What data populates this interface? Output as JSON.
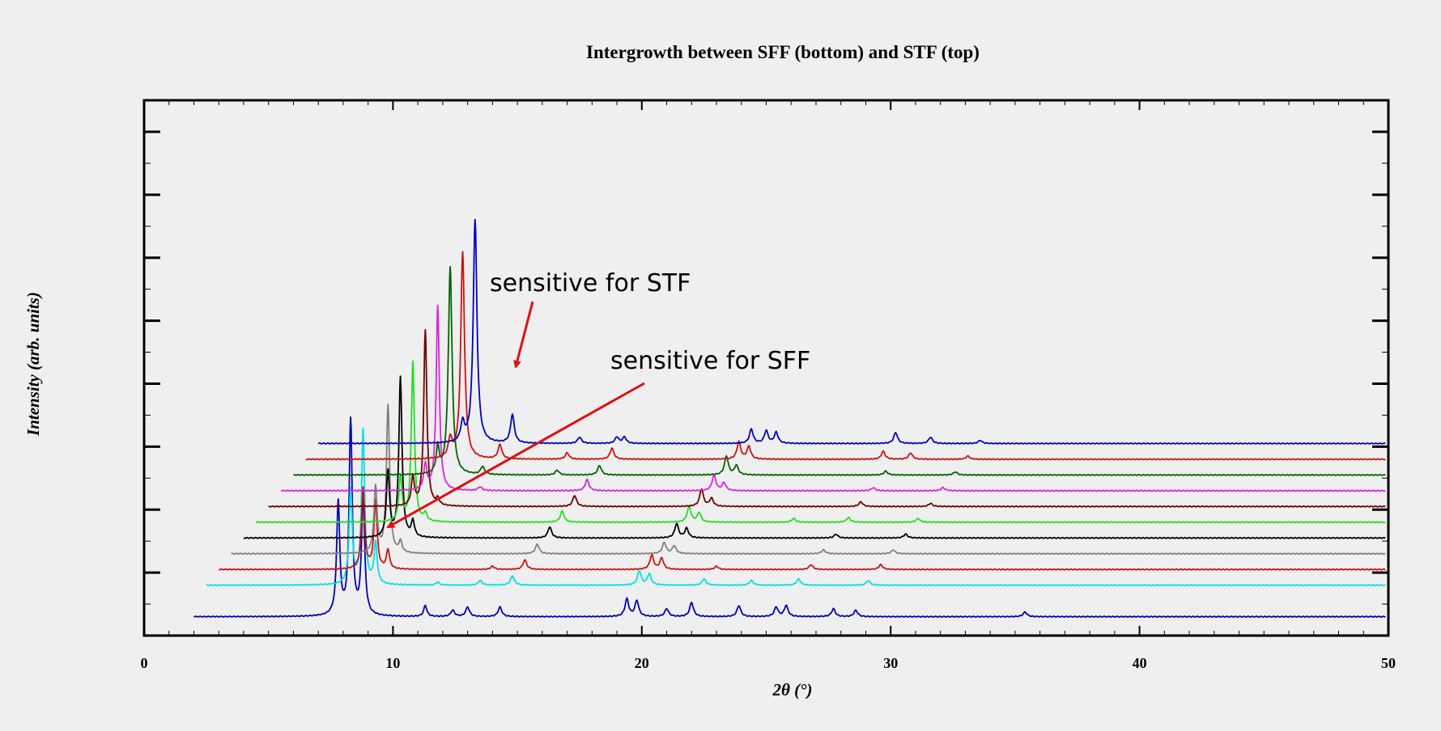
{
  "chart_data": {
    "type": "line",
    "title": "Intergrowth between SFF (bottom) and STF (top)",
    "xlabel": "2θ (°)",
    "ylabel": "Intensity (arb. units)",
    "xlim": [
      0,
      50
    ],
    "ylim": [
      0,
      17
    ],
    "x_ticks": [
      "0",
      "10",
      "20",
      "30",
      "40",
      "50"
    ],
    "y_tick_labels_shown": false,
    "grid": false,
    "legend": "none",
    "offsets_note_key": "each pattern shifted by +0.5° in 2θ and stacked vertically",
    "series": [
      {
        "color": "#0000b4",
        "x_shift": 0.0,
        "baseline": 0.6,
        "peaks": [
          [
            7.8,
            3.6
          ],
          [
            8.3,
            6.2
          ],
          [
            8.8,
            3.8
          ],
          [
            11.3,
            0.35
          ],
          [
            12.4,
            0.2
          ],
          [
            13.0,
            0.3
          ],
          [
            14.3,
            0.3
          ],
          [
            19.4,
            0.55
          ],
          [
            19.8,
            0.5
          ],
          [
            21.0,
            0.25
          ],
          [
            22.0,
            0.45
          ],
          [
            23.9,
            0.35
          ],
          [
            25.4,
            0.3
          ],
          [
            25.8,
            0.35
          ],
          [
            27.7,
            0.25
          ],
          [
            28.6,
            0.2
          ],
          [
            35.4,
            0.15
          ]
        ]
      },
      {
        "color": "#00e0e8",
        "x_shift": 0.5,
        "baseline": 1.6,
        "peaks": [
          [
            7.8,
            3.0
          ],
          [
            8.3,
            4.9
          ],
          [
            8.8,
            1.3
          ],
          [
            11.3,
            0.1
          ],
          [
            13.0,
            0.15
          ],
          [
            14.3,
            0.3
          ],
          [
            19.4,
            0.45
          ],
          [
            19.8,
            0.35
          ],
          [
            22.0,
            0.2
          ],
          [
            23.9,
            0.15
          ],
          [
            25.8,
            0.2
          ],
          [
            28.6,
            0.15
          ]
        ]
      },
      {
        "color": "#d01010",
        "x_shift": 1.0,
        "baseline": 2.1,
        "peaks": [
          [
            7.8,
            2.6
          ],
          [
            8.3,
            2.2
          ],
          [
            8.8,
            0.6
          ],
          [
            13.0,
            0.1
          ],
          [
            14.3,
            0.3
          ],
          [
            19.4,
            0.45
          ],
          [
            19.8,
            0.35
          ],
          [
            22.0,
            0.1
          ],
          [
            25.8,
            0.15
          ],
          [
            28.6,
            0.15
          ]
        ]
      },
      {
        "color": "#808080",
        "x_shift": 1.5,
        "baseline": 2.6,
        "peaks": [
          [
            7.8,
            2.1
          ],
          [
            8.3,
            4.7
          ],
          [
            8.8,
            0.35
          ],
          [
            14.3,
            0.3
          ],
          [
            19.4,
            0.35
          ],
          [
            19.8,
            0.25
          ],
          [
            25.8,
            0.12
          ],
          [
            28.6,
            0.12
          ]
        ]
      },
      {
        "color": "#000000",
        "x_shift": 2.0,
        "baseline": 3.1,
        "peaks": [
          [
            7.8,
            2.1
          ],
          [
            8.3,
            5.1
          ],
          [
            8.8,
            0.5
          ],
          [
            14.3,
            0.35
          ],
          [
            19.4,
            0.45
          ],
          [
            19.8,
            0.3
          ],
          [
            25.8,
            0.12
          ],
          [
            28.6,
            0.12
          ]
        ]
      },
      {
        "color": "#20e020",
        "x_shift": 2.5,
        "baseline": 3.6,
        "peaks": [
          [
            7.8,
            1.4
          ],
          [
            8.3,
            5.1
          ],
          [
            8.8,
            0.25
          ],
          [
            14.3,
            0.35
          ],
          [
            19.4,
            0.5
          ],
          [
            19.8,
            0.3
          ],
          [
            23.6,
            0.12
          ],
          [
            25.8,
            0.15
          ],
          [
            28.6,
            0.12
          ]
        ]
      },
      {
        "color": "#700000",
        "x_shift": 3.0,
        "baseline": 4.1,
        "peaks": [
          [
            7.8,
            0.9
          ],
          [
            8.3,
            5.6
          ],
          [
            8.8,
            0.2
          ],
          [
            14.3,
            0.35
          ],
          [
            19.4,
            0.55
          ],
          [
            19.8,
            0.25
          ],
          [
            25.8,
            0.15
          ],
          [
            28.6,
            0.1
          ]
        ]
      },
      {
        "color": "#e020e0",
        "x_shift": 3.5,
        "baseline": 4.6,
        "peaks": [
          [
            7.8,
            0.8
          ],
          [
            8.3,
            5.9
          ],
          [
            10.0,
            0.12
          ],
          [
            14.3,
            0.35
          ],
          [
            19.4,
            0.5
          ],
          [
            19.8,
            0.25
          ],
          [
            25.8,
            0.1
          ],
          [
            28.6,
            0.1
          ]
        ]
      },
      {
        "color": "#006400",
        "x_shift": 4.0,
        "baseline": 5.1,
        "peaks": [
          [
            7.8,
            0.8
          ],
          [
            8.3,
            6.6
          ],
          [
            9.6,
            0.25
          ],
          [
            12.6,
            0.15
          ],
          [
            14.3,
            0.3
          ],
          [
            19.4,
            0.6
          ],
          [
            19.8,
            0.3
          ],
          [
            25.8,
            0.12
          ],
          [
            28.6,
            0.1
          ]
        ]
      },
      {
        "color": "#d01010",
        "x_shift": 4.5,
        "baseline": 5.6,
        "peaks": [
          [
            7.8,
            0.6
          ],
          [
            8.3,
            6.6
          ],
          [
            9.8,
            0.45
          ],
          [
            12.5,
            0.2
          ],
          [
            14.3,
            0.35
          ],
          [
            19.4,
            0.55
          ],
          [
            19.8,
            0.4
          ],
          [
            25.2,
            0.25
          ],
          [
            26.3,
            0.2
          ],
          [
            28.6,
            0.1
          ]
        ]
      },
      {
        "color": "#0000c8",
        "x_shift": 5.0,
        "baseline": 6.1,
        "peaks": [
          [
            7.8,
            0.6
          ],
          [
            8.3,
            7.1
          ],
          [
            9.8,
            0.9
          ],
          [
            12.5,
            0.2
          ],
          [
            14.0,
            0.2
          ],
          [
            14.3,
            0.2
          ],
          [
            19.4,
            0.45
          ],
          [
            20.0,
            0.4
          ],
          [
            20.4,
            0.35
          ],
          [
            25.2,
            0.35
          ],
          [
            26.6,
            0.2
          ],
          [
            28.6,
            0.1
          ]
        ]
      }
    ],
    "annotations": [
      {
        "text": "sensitive for STF",
        "arrow_to_2theta": 15.0,
        "color": "#e01010"
      },
      {
        "text": "sensitive for SFF",
        "arrow_to_2theta": 10.0,
        "color": "#e01010"
      }
    ]
  }
}
